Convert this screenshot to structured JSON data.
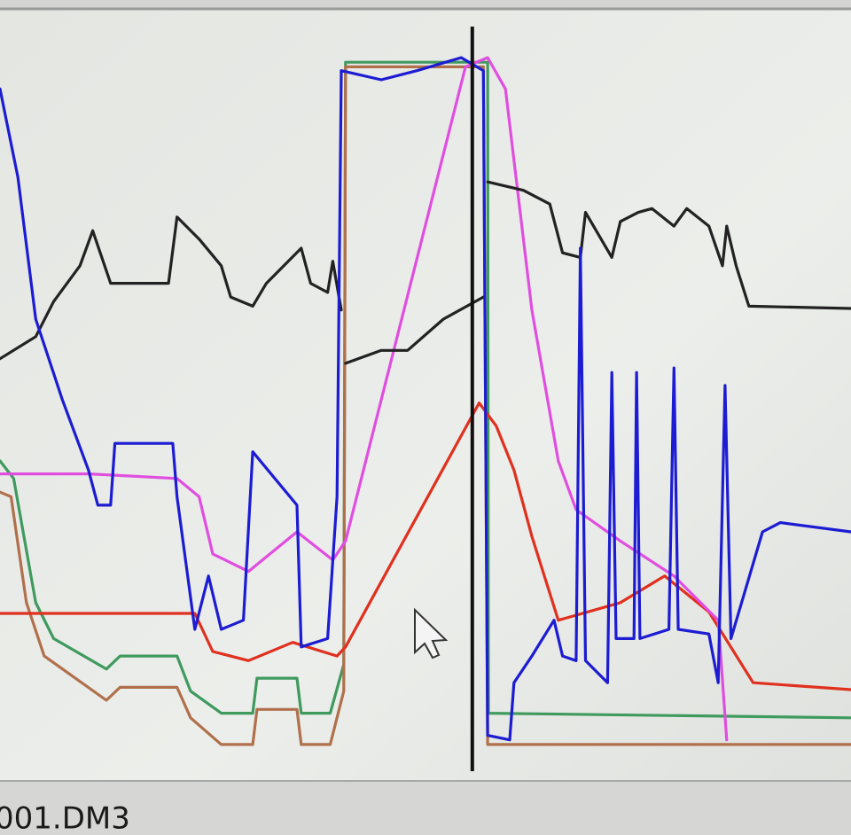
{
  "status_text": "001.DM3",
  "chart_data": {
    "type": "line",
    "xlim": [
      0,
      100
    ],
    "ylim": [
      0,
      100
    ],
    "cursor_x": 55.5,
    "series": [
      {
        "color": "#3f9a5e",
        "x": [
          0,
          1.6,
          4.2,
          6.3,
          12.5,
          14.1,
          20.8,
          22.4,
          26.0,
          29.7,
          30.2,
          34.9,
          35.4,
          38.8,
          40.4,
          40.6,
          57.3,
          57.4,
          100
        ],
        "values": [
          40.7,
          38.4,
          22.1,
          17.4,
          13.4,
          15.1,
          15.1,
          10.5,
          7.6,
          7.6,
          12.2,
          12.2,
          7.6,
          7.6,
          14.0,
          93.0,
          93.0,
          7.6,
          7.0
        ]
      },
      {
        "color": "#b0704c",
        "x": [
          0,
          1.3,
          3.1,
          5.2,
          12.5,
          14.1,
          20.8,
          22.4,
          26.0,
          29.7,
          30.2,
          34.9,
          35.4,
          38.8,
          40.4,
          40.6,
          56.8,
          57.3,
          100
        ],
        "values": [
          36.6,
          36.0,
          22.1,
          15.1,
          9.3,
          11.0,
          11.0,
          7.0,
          3.5,
          3.5,
          8.1,
          8.1,
          3.5,
          3.5,
          10.5,
          92.4,
          92.4,
          3.5,
          3.5
        ]
      },
      {
        "color": "#e0301e",
        "x": [
          0,
          22.9,
          25.0,
          29.2,
          34.4,
          39.6,
          40.6,
          56.3,
          58.3,
          60.4,
          62.5,
          65.6,
          72.9,
          78.1,
          83.3,
          88.5,
          100
        ],
        "values": [
          20.7,
          20.7,
          15.7,
          14.5,
          16.9,
          15.1,
          16.3,
          48.3,
          45.3,
          39.5,
          30.8,
          19.8,
          22.1,
          25.6,
          20.9,
          11.6,
          10.7
        ]
      },
      {
        "color": "#e04ee0",
        "x": [
          0,
          10.4,
          20.8,
          23.4,
          25.0,
          29.2,
          34.9,
          39.1,
          40.6,
          54.7,
          57.3,
          59.4,
          62.5,
          65.6,
          67.7,
          72.9,
          79.2,
          84.4,
          85.4
        ],
        "values": [
          39.0,
          39.0,
          38.4,
          36.0,
          28.5,
          26.2,
          31.4,
          27.7,
          30.2,
          92.4,
          93.6,
          89.5,
          60.5,
          40.7,
          34.3,
          30.2,
          25.6,
          19.8,
          4.1
        ]
      },
      {
        "color": "#222222",
        "x": [
          0,
          4.2,
          6.3,
          9.4,
          10.9,
          13.0,
          19.8,
          20.8,
          23.4,
          26.0,
          27.1,
          29.7,
          31.3,
          35.4,
          36.5,
          38.5,
          39.1,
          40.1,
          40.3,
          40.6,
          44.8,
          47.9,
          52.1,
          56.8,
          57.0,
          57.3,
          61.5,
          64.6,
          66.1,
          68.2,
          68.8,
          71.9,
          72.9,
          75.0,
          76.6,
          79.2,
          80.7,
          83.3,
          84.9,
          85.4,
          86.5,
          88.0,
          100
        ],
        "values": [
          54.1,
          57.0,
          61.6,
          66.3,
          70.9,
          64.0,
          64.0,
          72.7,
          69.8,
          66.3,
          62.2,
          61.0,
          64.0,
          68.6,
          64.0,
          62.8,
          66.9,
          60.5,
          null,
          53.5,
          55.2,
          55.2,
          59.3,
          62.2,
          null,
          77.3,
          76.2,
          74.4,
          68.0,
          67.4,
          73.3,
          67.4,
          72.1,
          73.3,
          73.8,
          71.5,
          73.8,
          71.5,
          66.3,
          71.5,
          66.3,
          61.0,
          60.7
        ]
      },
      {
        "color": "#1c1cd2",
        "x": [
          0,
          2.1,
          4.2,
          7.3,
          10.4,
          11.5,
          13.0,
          13.5,
          20.3,
          20.8,
          22.9,
          24.5,
          26.0,
          28.6,
          29.7,
          34.9,
          35.4,
          38.5,
          39.6,
          40.1,
          44.8,
          49.0,
          54.2,
          56.8,
          57.3,
          59.9,
          60.4,
          62.5,
          65.1,
          66.1,
          67.7,
          68.2,
          68.8,
          71.4,
          71.9,
          72.4,
          74.5,
          74.8,
          75.2,
          78.6,
          79.2,
          79.7,
          83.3,
          84.4,
          85.2,
          85.9,
          89.6,
          91.7,
          100
        ],
        "values": [
          89.5,
          77.9,
          59.3,
          48.8,
          39.5,
          34.9,
          34.9,
          43.0,
          43.0,
          36.0,
          18.6,
          25.6,
          18.6,
          19.8,
          41.9,
          34.9,
          16.3,
          17.4,
          36.0,
          91.9,
          90.7,
          91.9,
          93.6,
          91.9,
          4.7,
          4.1,
          11.6,
          15.1,
          19.8,
          15.1,
          14.5,
          68.6,
          14.5,
          11.6,
          52.3,
          17.4,
          17.4,
          52.3,
          17.4,
          18.6,
          52.9,
          18.6,
          18.0,
          11.6,
          50.6,
          17.4,
          31.4,
          32.6,
          31.4
        ]
      }
    ]
  }
}
